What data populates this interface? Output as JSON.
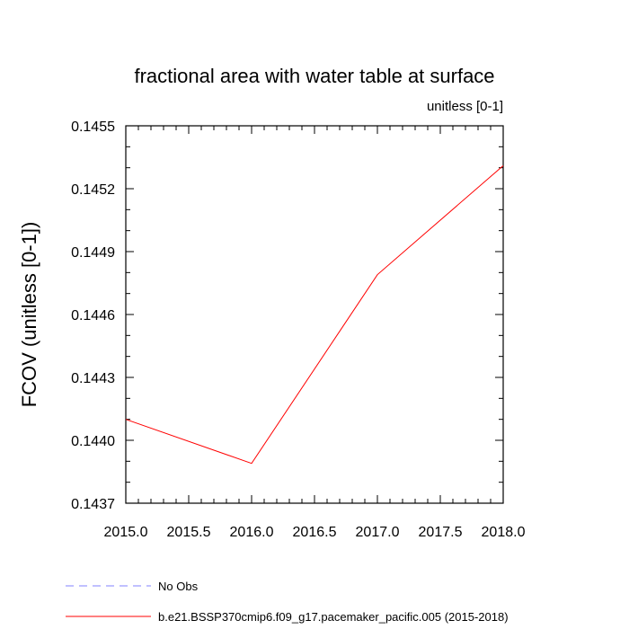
{
  "chart_data": {
    "type": "line",
    "title": "fractional area with water table at surface",
    "units_label": "unitless [0-1]",
    "ylabel": "FCOV  (unitless [0-1])",
    "xlabel": "",
    "xlim": [
      2015.0,
      2018.0
    ],
    "ylim": [
      0.1437,
      0.1455
    ],
    "x_ticks": [
      2015.0,
      2015.5,
      2016.0,
      2016.5,
      2017.0,
      2017.5,
      2018.0
    ],
    "x_tick_labels": [
      "2015.0",
      "2015.5",
      "2016.0",
      "2016.5",
      "2017.0",
      "2017.5",
      "2018.0"
    ],
    "y_ticks": [
      0.1437,
      0.144,
      0.1443,
      0.1446,
      0.1449,
      0.1452,
      0.1455
    ],
    "y_tick_labels": [
      "0.1437",
      "0.1440",
      "0.1443",
      "0.1446",
      "0.1449",
      "0.1452",
      "0.1455"
    ],
    "grid": false,
    "legend_position": "bottom",
    "series": [
      {
        "name": "No Obs",
        "color": "#8080ff",
        "dash": "dashed",
        "x": [],
        "y": []
      },
      {
        "name": "b.e21.BSSP370cmip6.f09_g17.pacemaker_pacific.005 (2015-2018)",
        "color": "#ff0000",
        "dash": "solid",
        "x": [
          2015,
          2016,
          2017,
          2018
        ],
        "y": [
          0.1441,
          0.14389,
          0.14479,
          0.14531
        ]
      }
    ]
  }
}
